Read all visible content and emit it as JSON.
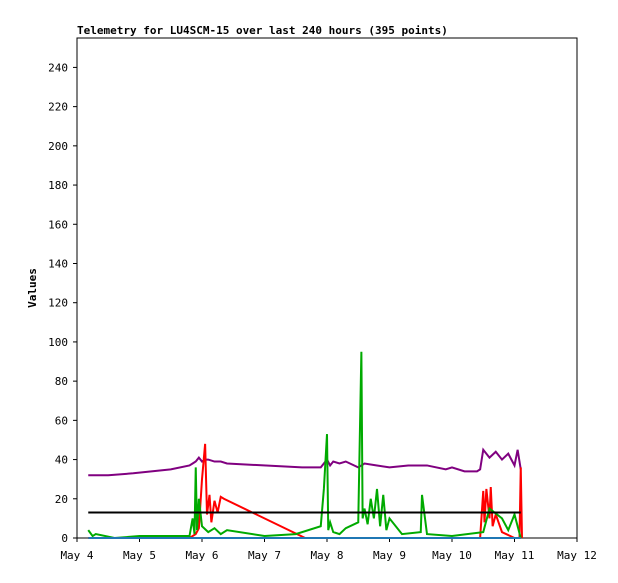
{
  "chart_data": {
    "type": "line",
    "title": "Telemetry for LU4SCM-15 over last 240 hours (395 points)",
    "y_label": "Values",
    "xlim": [
      4,
      12
    ],
    "xticks": [
      {
        "value": 4,
        "label": "May 4"
      },
      {
        "value": 5,
        "label": "May 5"
      },
      {
        "value": 6,
        "label": "May 6"
      },
      {
        "value": 7,
        "label": "May 7"
      },
      {
        "value": 8,
        "label": "May 8"
      },
      {
        "value": 9,
        "label": "May 9"
      },
      {
        "value": 10,
        "label": "May 10"
      },
      {
        "value": 11,
        "label": "May 11"
      },
      {
        "value": 12,
        "label": "May 12"
      }
    ],
    "ylim": [
      0,
      255
    ],
    "yticks": [
      0,
      20,
      40,
      60,
      80,
      100,
      120,
      140,
      160,
      180,
      200,
      220,
      240
    ],
    "grid": false,
    "series": [
      {
        "color": "#800080",
        "x": [
          4.18,
          4.5,
          4.9,
          5.5,
          5.8,
          5.85,
          5.9,
          5.95,
          6.0,
          6.05,
          6.1,
          6.2,
          6.3,
          6.4,
          7.6,
          7.9,
          8.0,
          8.05,
          8.1,
          8.2,
          8.3,
          8.5,
          8.6,
          8.8,
          9.0,
          9.3,
          9.6,
          9.9,
          10.0,
          10.2,
          10.4,
          10.45,
          10.5,
          10.6,
          10.7,
          10.8,
          10.9,
          11.0,
          11.05,
          11.1
        ],
        "values": [
          32,
          32,
          33,
          35,
          37,
          38,
          39,
          41,
          39,
          40,
          40,
          39,
          39,
          38,
          36,
          36,
          40,
          37,
          39,
          38,
          39,
          36,
          38,
          37,
          36,
          37,
          37,
          35,
          36,
          34,
          34,
          35,
          45,
          41,
          44,
          40,
          43,
          37,
          45,
          35
        ]
      },
      {
        "color": "#ff0000",
        "x": [
          4.18,
          5.0,
          5.8,
          5.9,
          5.95,
          6.0,
          6.05,
          6.08,
          6.12,
          6.15,
          6.2,
          6.25,
          6.3,
          6.35,
          7.65,
          8.0,
          9.0,
          10.0,
          10.45,
          10.5,
          10.52,
          10.55,
          10.6,
          10.62,
          10.65,
          10.7,
          10.8,
          11.0,
          11.08,
          11.1,
          11.12
        ],
        "values": [
          0,
          0,
          0,
          2,
          5,
          30,
          48,
          12,
          22,
          8,
          19,
          13,
          21,
          20,
          0,
          0,
          0,
          0,
          0,
          24,
          8,
          25,
          10,
          26,
          6,
          12,
          3,
          0,
          0,
          36,
          0
        ]
      },
      {
        "color": "#00aa00",
        "x": [
          4.18,
          4.25,
          4.3,
          4.6,
          5.0,
          5.5,
          5.8,
          5.85,
          5.88,
          5.9,
          5.92,
          5.95,
          6.0,
          6.1,
          6.2,
          6.3,
          6.4,
          7.0,
          7.5,
          7.9,
          7.95,
          8.0,
          8.02,
          8.05,
          8.1,
          8.2,
          8.3,
          8.5,
          8.55,
          8.57,
          8.6,
          8.65,
          8.7,
          8.75,
          8.8,
          8.85,
          8.9,
          8.95,
          9.0,
          9.2,
          9.5,
          9.52,
          9.6,
          10.0,
          10.5,
          10.6,
          10.8,
          10.9,
          11.0,
          11.1
        ],
        "values": [
          4,
          1,
          2,
          0,
          1,
          1,
          1,
          10,
          2,
          36,
          4,
          20,
          6,
          3,
          5,
          2,
          4,
          1,
          2,
          6,
          25,
          53,
          4,
          8,
          3,
          2,
          5,
          8,
          95,
          10,
          15,
          7,
          20,
          10,
          25,
          6,
          22,
          4,
          10,
          2,
          3,
          22,
          2,
          1,
          3,
          15,
          10,
          4,
          12,
          0
        ]
      },
      {
        "color": "#000000",
        "x": [
          4.18,
          11.1
        ],
        "values": [
          13,
          13
        ]
      },
      {
        "color": "#1f77b4",
        "x": [
          4.18,
          11.1
        ],
        "values": [
          0,
          0
        ]
      }
    ]
  }
}
